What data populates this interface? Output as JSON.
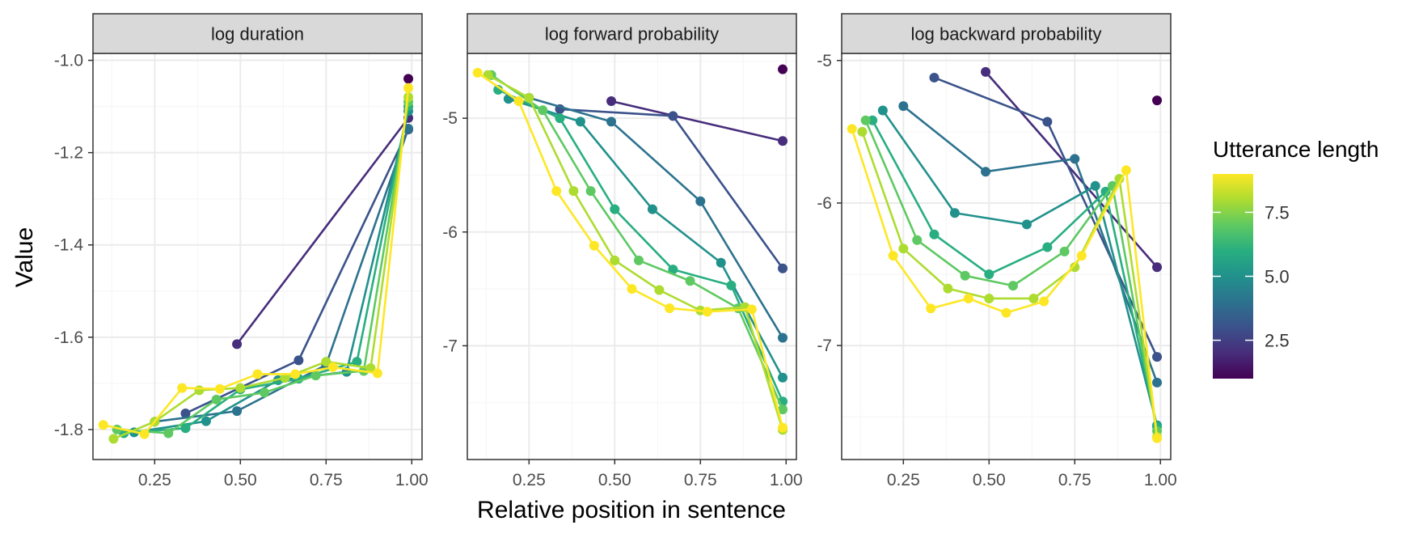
{
  "chart_data": {
    "type": "line",
    "facets": [
      {
        "title": "log duration",
        "xlim": [
          0.07,
          1.03
        ],
        "ylim": [
          -1.865,
          -0.985
        ],
        "yticks": [
          -1.8,
          -1.6,
          -1.4,
          -1.2,
          -1.0
        ],
        "ytick_labels": [
          "-1.8",
          "-1.6",
          "-1.4",
          "-1.2",
          "-1.0"
        ],
        "series": [
          {
            "length": 1,
            "x": [
              0.99
            ],
            "y": [
              -1.04
            ]
          },
          {
            "length": 2,
            "x": [
              0.49,
              0.99
            ],
            "y": [
              -1.615,
              -1.125
            ]
          },
          {
            "length": 3,
            "x": [
              0.34,
              0.67,
              0.99
            ],
            "y": [
              -1.765,
              -1.65,
              -1.15
            ]
          },
          {
            "length": 4,
            "x": [
              0.25,
              0.49,
              0.75,
              0.99
            ],
            "y": [
              -1.783,
              -1.76,
              -1.66,
              -1.148
            ]
          },
          {
            "length": 5,
            "x": [
              0.19,
              0.4,
              0.61,
              0.81,
              0.99
            ],
            "y": [
              -1.806,
              -1.782,
              -1.693,
              -1.675,
              -1.11
            ]
          },
          {
            "length": 6,
            "x": [
              0.16,
              0.34,
              0.5,
              0.67,
              0.84,
              0.99
            ],
            "y": [
              -1.808,
              -1.797,
              -1.713,
              -1.69,
              -1.653,
              -1.1
            ]
          },
          {
            "length": 7,
            "x": [
              0.14,
              0.29,
              0.43,
              0.57,
              0.72,
              0.86,
              0.99
            ],
            "y": [
              -1.8,
              -1.808,
              -1.735,
              -1.72,
              -1.683,
              -1.673,
              -1.09
            ]
          },
          {
            "length": 8,
            "x": [
              0.13,
              0.25,
              0.38,
              0.5,
              0.63,
              0.75,
              0.88,
              0.99
            ],
            "y": [
              -1.82,
              -1.783,
              -1.715,
              -1.71,
              -1.688,
              -1.653,
              -1.667,
              -1.08
            ]
          },
          {
            "length": 9,
            "x": [
              0.1,
              0.22,
              0.33,
              0.44,
              0.55,
              0.66,
              0.77,
              0.9,
              0.99
            ],
            "y": [
              -1.79,
              -1.81,
              -1.71,
              -1.712,
              -1.68,
              -1.68,
              -1.665,
              -1.678,
              -1.06
            ]
          }
        ]
      },
      {
        "title": "log forward probability",
        "xlim": [
          0.07,
          1.03
        ],
        "ylim": [
          -8.0,
          -4.43
        ],
        "yticks": [
          -7,
          -6,
          -5
        ],
        "ytick_labels": [
          "-7",
          "-6",
          "-5"
        ],
        "series": [
          {
            "length": 1,
            "x": [
              0.99
            ],
            "y": [
              -4.57
            ]
          },
          {
            "length": 2,
            "x": [
              0.49,
              0.99
            ],
            "y": [
              -4.85,
              -5.2
            ]
          },
          {
            "length": 3,
            "x": [
              0.34,
              0.67,
              0.99
            ],
            "y": [
              -4.92,
              -4.98,
              -6.32
            ]
          },
          {
            "length": 4,
            "x": [
              0.25,
              0.49,
              0.75,
              0.99
            ],
            "y": [
              -4.82,
              -5.03,
              -5.73,
              -6.93
            ]
          },
          {
            "length": 5,
            "x": [
              0.19,
              0.4,
              0.61,
              0.81,
              0.99
            ],
            "y": [
              -4.83,
              -5.03,
              -5.8,
              -6.27,
              -7.28
            ]
          },
          {
            "length": 6,
            "x": [
              0.16,
              0.34,
              0.5,
              0.67,
              0.84,
              0.99
            ],
            "y": [
              -4.75,
              -5.0,
              -5.8,
              -6.33,
              -6.47,
              -7.49
            ]
          },
          {
            "length": 7,
            "x": [
              0.14,
              0.29,
              0.43,
              0.57,
              0.72,
              0.86,
              0.99
            ],
            "y": [
              -4.62,
              -4.93,
              -5.64,
              -6.25,
              -6.43,
              -6.67,
              -7.56
            ]
          },
          {
            "length": 8,
            "x": [
              0.13,
              0.25,
              0.38,
              0.5,
              0.63,
              0.75,
              0.88,
              0.99
            ],
            "y": [
              -4.62,
              -4.82,
              -5.64,
              -6.25,
              -6.51,
              -6.69,
              -6.66,
              -7.74
            ]
          },
          {
            "length": 9,
            "x": [
              0.1,
              0.22,
              0.33,
              0.44,
              0.55,
              0.66,
              0.77,
              0.9,
              0.99
            ],
            "y": [
              -4.6,
              -4.85,
              -5.64,
              -6.12,
              -6.5,
              -6.67,
              -6.7,
              -6.68,
              -7.72
            ]
          }
        ]
      },
      {
        "title": "log backward probability",
        "xlim": [
          0.07,
          1.03
        ],
        "ylim": [
          -7.8,
          -4.95
        ],
        "yticks": [
          -7,
          -6,
          -5
        ],
        "ytick_labels": [
          "-7",
          "-6",
          "-5"
        ],
        "series": [
          {
            "length": 1,
            "x": [
              0.99
            ],
            "y": [
              -5.28
            ]
          },
          {
            "length": 2,
            "x": [
              0.49,
              0.99
            ],
            "y": [
              -5.08,
              -6.45
            ]
          },
          {
            "length": 3,
            "x": [
              0.34,
              0.67,
              0.99
            ],
            "y": [
              -5.12,
              -5.43,
              -7.08
            ]
          },
          {
            "length": 4,
            "x": [
              0.25,
              0.49,
              0.75,
              0.99
            ],
            "y": [
              -5.32,
              -5.78,
              -5.69,
              -7.26
            ]
          },
          {
            "length": 5,
            "x": [
              0.19,
              0.4,
              0.61,
              0.81,
              0.99
            ],
            "y": [
              -5.35,
              -6.07,
              -6.15,
              -5.88,
              -7.56
            ]
          },
          {
            "length": 6,
            "x": [
              0.16,
              0.34,
              0.5,
              0.67,
              0.84,
              0.99
            ],
            "y": [
              -5.42,
              -6.22,
              -6.5,
              -6.31,
              -5.92,
              -7.57
            ]
          },
          {
            "length": 7,
            "x": [
              0.14,
              0.29,
              0.43,
              0.57,
              0.72,
              0.86,
              0.99
            ],
            "y": [
              -5.42,
              -6.26,
              -6.51,
              -6.58,
              -6.34,
              -5.88,
              -7.6
            ]
          },
          {
            "length": 8,
            "x": [
              0.13,
              0.25,
              0.38,
              0.5,
              0.63,
              0.75,
              0.88,
              0.99
            ],
            "y": [
              -5.5,
              -6.32,
              -6.6,
              -6.67,
              -6.67,
              -6.45,
              -5.83,
              -7.64
            ]
          },
          {
            "length": 9,
            "x": [
              0.1,
              0.22,
              0.33,
              0.44,
              0.55,
              0.66,
              0.77,
              0.9,
              0.99
            ],
            "y": [
              -5.48,
              -6.37,
              -6.74,
              -6.67,
              -6.77,
              -6.69,
              -6.37,
              -5.77,
              -7.65
            ]
          }
        ]
      }
    ],
    "xticks": [
      0.25,
      0.5,
      0.75,
      1.0
    ],
    "xtick_labels": [
      "0.25",
      "0.50",
      "0.75",
      "1.00"
    ],
    "xlabel": "Relative position in sentence",
    "ylabel": "Value",
    "legend": {
      "title": "Utterance length",
      "position": "right",
      "range": [
        1,
        9
      ],
      "ticks": [
        2.5,
        5.0,
        7.5
      ],
      "tick_labels": [
        "2.5",
        "5.0",
        "7.5"
      ]
    },
    "colors": {
      "1": "#440154",
      "2": "#472d7b",
      "3": "#3b528b",
      "4": "#2c728e",
      "5": "#21918c",
      "6": "#28ae80",
      "7": "#5ec962",
      "8": "#addc30",
      "9": "#fde725"
    },
    "grid": true,
    "style": {
      "panel_border": "#333333",
      "strip_fill": "#d9d9d9",
      "grid_major": "#ebebeb",
      "grid_minor": "#f5f5f5"
    }
  }
}
